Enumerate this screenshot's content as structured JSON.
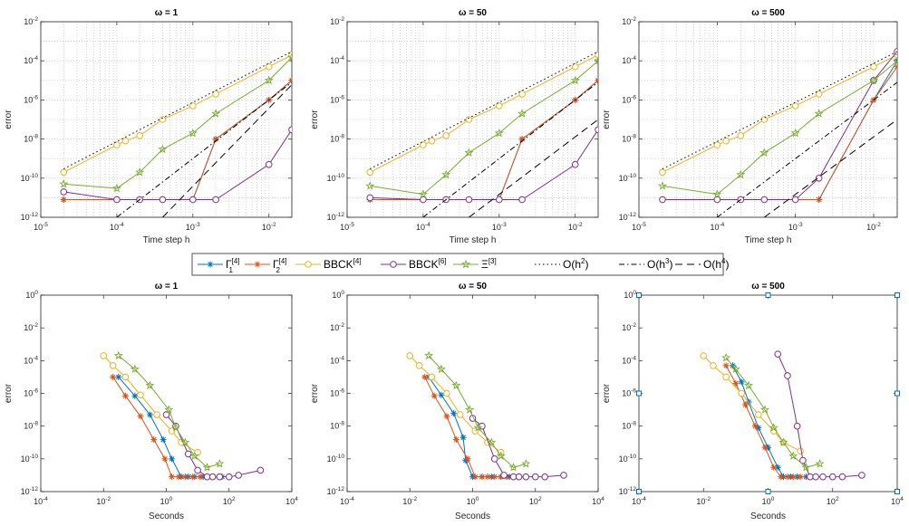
{
  "legend": [
    {
      "series": "Gamma1",
      "label": "Γ",
      "sup": "[4]",
      "sub": "1",
      "color": "#0072bd",
      "marker": "asterisk"
    },
    {
      "series": "Gamma2",
      "label": "Γ",
      "sup": "[4]",
      "sub": "2",
      "color": "#d95319",
      "marker": "asterisk"
    },
    {
      "series": "BBCK4",
      "label": "BBCK",
      "sup": "[4]",
      "sub": "",
      "color": "#edb120",
      "marker": "circle"
    },
    {
      "series": "BBCK6",
      "label": "BBCK",
      "sup": "[6]",
      "sub": "",
      "color": "#7e2f8e",
      "marker": "circle"
    },
    {
      "series": "Xi3",
      "label": "Ξ",
      "sup": "[3]",
      "sub": "",
      "color": "#77ac30",
      "marker": "star"
    },
    {
      "series": "Oh2",
      "label": "O(h",
      "sup": "2",
      "tail": ")",
      "dash": "1.5,3"
    },
    {
      "series": "Oh3",
      "label": "O(h",
      "sup": "3",
      "tail": ")",
      "dash": "6,3,1.5,3"
    },
    {
      "series": "Oh4",
      "label": "O(h",
      "sup": "4",
      "tail": ")",
      "dash": "8,5"
    }
  ],
  "chart_data": [
    {
      "type": "line",
      "title": "ω = 1",
      "xlabel": "Time step h",
      "ylabel": "error",
      "xscale": "log",
      "yscale": "log",
      "xlim": [
        1e-05,
        0.02
      ],
      "ylim": [
        1e-12,
        0.01
      ],
      "grid": "dotted",
      "series": [
        {
          "key": "Gamma1",
          "x": [
            2e-05,
            0.0001,
            0.0002,
            0.0004,
            0.001,
            0.002,
            0.01,
            0.02
          ],
          "y": [
            8e-12,
            8e-12,
            8e-12,
            8e-12,
            8e-12,
            1e-08,
            1e-06,
            1e-05
          ]
        },
        {
          "key": "Gamma2",
          "x": [
            2e-05,
            0.0001,
            0.0002,
            0.0004,
            0.001,
            0.002,
            0.01,
            0.02
          ],
          "y": [
            8e-12,
            8e-12,
            8e-12,
            8e-12,
            8e-12,
            1e-08,
            1e-06,
            1e-05
          ]
        },
        {
          "key": "BBCK4",
          "x": [
            2e-05,
            0.0001,
            0.00013,
            0.0002,
            0.0004,
            0.001,
            0.002,
            0.01,
            0.02
          ],
          "y": [
            2e-10,
            5e-09,
            8e-09,
            1.5e-08,
            1e-07,
            5e-07,
            2e-06,
            5e-05,
            0.0002
          ]
        },
        {
          "key": "BBCK6",
          "x": [
            2e-05,
            0.0001,
            0.0002,
            0.0004,
            0.001,
            0.002,
            0.01,
            0.02
          ],
          "y": [
            2e-11,
            8e-12,
            8e-12,
            8e-12,
            8e-12,
            8e-12,
            5e-10,
            3e-08
          ]
        },
        {
          "key": "Xi3",
          "x": [
            2e-05,
            0.0001,
            0.0002,
            0.0004,
            0.001,
            0.002,
            0.01,
            0.02
          ],
          "y": [
            5e-11,
            3e-11,
            2e-10,
            3e-09,
            2e-08,
            2e-07,
            1e-05,
            0.00015
          ]
        },
        {
          "key": "Oh2",
          "x": [
            2e-05,
            0.02
          ],
          "y": [
            3e-10,
            0.0003
          ]
        },
        {
          "key": "Oh3",
          "x": [
            0.0001,
            0.02
          ],
          "y": [
            1e-12,
            8e-06
          ]
        },
        {
          "key": "Oh4",
          "x": [
            0.0004,
            0.02
          ],
          "y": [
            1e-12,
            6e-06
          ]
        }
      ]
    },
    {
      "type": "line",
      "title": "ω = 50",
      "xlabel": "Time step h",
      "ylabel": "error",
      "xscale": "log",
      "yscale": "log",
      "xlim": [
        1e-05,
        0.02
      ],
      "ylim": [
        1e-12,
        0.01
      ],
      "grid": "dotted",
      "series": [
        {
          "key": "Gamma1",
          "x": [
            2e-05,
            0.0001,
            0.0002,
            0.0004,
            0.001,
            0.002,
            0.01,
            0.02
          ],
          "y": [
            8e-12,
            8e-12,
            8e-12,
            8e-12,
            8e-12,
            1e-08,
            1e-06,
            1e-05
          ]
        },
        {
          "key": "Gamma2",
          "x": [
            2e-05,
            0.0001,
            0.0002,
            0.0004,
            0.001,
            0.002,
            0.01,
            0.02
          ],
          "y": [
            8e-12,
            8e-12,
            8e-12,
            8e-12,
            8e-12,
            1e-08,
            1e-06,
            1e-05
          ]
        },
        {
          "key": "BBCK4",
          "x": [
            2e-05,
            0.0001,
            0.00013,
            0.0002,
            0.0004,
            0.001,
            0.002,
            0.01,
            0.02
          ],
          "y": [
            2e-10,
            5e-09,
            8e-09,
            1.5e-08,
            1e-07,
            5e-07,
            2e-06,
            5e-05,
            0.0002
          ]
        },
        {
          "key": "BBCK6",
          "x": [
            2e-05,
            0.0001,
            0.0002,
            0.0004,
            0.001,
            0.002,
            0.01,
            0.02
          ],
          "y": [
            1e-11,
            8e-12,
            8e-12,
            8e-12,
            8e-12,
            8e-12,
            5e-10,
            3e-08
          ]
        },
        {
          "key": "Xi3",
          "x": [
            2e-05,
            0.0001,
            0.0002,
            0.0004,
            0.001,
            0.002,
            0.01,
            0.02
          ],
          "y": [
            4e-11,
            1.5e-11,
            1.5e-10,
            2e-09,
            2e-08,
            2e-07,
            1e-05,
            0.0001
          ]
        },
        {
          "key": "Oh2",
          "x": [
            2e-05,
            0.02
          ],
          "y": [
            3e-10,
            0.0003
          ]
        },
        {
          "key": "Oh3",
          "x": [
            0.0001,
            0.02
          ],
          "y": [
            1e-12,
            8e-06
          ]
        },
        {
          "key": "Oh4",
          "x": [
            0.0004,
            0.02
          ],
          "y": [
            1e-12,
            1e-07
          ]
        }
      ]
    },
    {
      "type": "line",
      "title": "ω = 500",
      "xlabel": "Time step h",
      "ylabel": "error",
      "xscale": "log",
      "yscale": "log",
      "xlim": [
        1e-05,
        0.02
      ],
      "ylim": [
        1e-12,
        0.01
      ],
      "grid": "dotted",
      "series": [
        {
          "key": "Gamma1",
          "x": [
            2e-05,
            0.0001,
            0.0002,
            0.0004,
            0.001,
            0.002,
            0.01,
            0.02
          ],
          "y": [
            8e-12,
            8e-12,
            8e-12,
            8e-12,
            8e-12,
            8e-12,
            1e-06,
            0.0001
          ]
        },
        {
          "key": "Gamma2",
          "x": [
            2e-05,
            0.0001,
            0.0002,
            0.0004,
            0.001,
            0.002,
            0.01,
            0.02
          ],
          "y": [
            8e-12,
            8e-12,
            8e-12,
            8e-12,
            8e-12,
            8e-12,
            1e-06,
            5e-05
          ]
        },
        {
          "key": "BBCK4",
          "x": [
            2e-05,
            0.0001,
            0.00013,
            0.0002,
            0.0004,
            0.001,
            0.002,
            0.01,
            0.02
          ],
          "y": [
            2e-10,
            5e-09,
            8e-09,
            1.5e-08,
            1e-07,
            5e-07,
            2e-06,
            5e-05,
            0.0002
          ]
        },
        {
          "key": "BBCK6",
          "x": [
            2e-05,
            0.0001,
            0.0002,
            0.0004,
            0.001,
            0.002,
            0.01,
            0.02
          ],
          "y": [
            8e-12,
            8e-12,
            8e-12,
            8e-12,
            8e-12,
            1e-10,
            1e-05,
            0.0003
          ]
        },
        {
          "key": "Xi3",
          "x": [
            2e-05,
            0.0001,
            0.0002,
            0.0004,
            0.001,
            0.002,
            0.01,
            0.02
          ],
          "y": [
            4e-11,
            1.5e-11,
            1.5e-10,
            2e-09,
            2e-08,
            2e-07,
            1e-05,
            0.0001
          ]
        },
        {
          "key": "Oh2",
          "x": [
            2e-05,
            0.02
          ],
          "y": [
            3e-10,
            0.0003
          ]
        },
        {
          "key": "Oh3",
          "x": [
            0.0001,
            0.02
          ],
          "y": [
            1e-12,
            8e-06
          ]
        },
        {
          "key": "Oh4",
          "x": [
            0.0004,
            0.02
          ],
          "y": [
            1e-12,
            1e-07
          ]
        }
      ]
    },
    {
      "type": "line",
      "title": "ω = 1",
      "xlabel": "Seconds",
      "ylabel": "error",
      "xscale": "log",
      "yscale": "log",
      "xlim": [
        0.0001,
        10000.0
      ],
      "ylim": [
        1e-12,
        1
      ],
      "grid": "none",
      "series": [
        {
          "key": "Gamma1",
          "x": [
            0.03,
            0.1,
            0.3,
            0.8,
            1.5,
            3,
            5,
            8,
            15,
            30,
            60
          ],
          "y": [
            1e-05,
            7e-07,
            5e-08,
            1.5e-09,
            1e-10,
            8e-12,
            8e-12,
            8e-12,
            8e-12,
            8e-12,
            8e-12
          ]
        },
        {
          "key": "Gamma2",
          "x": [
            0.02,
            0.05,
            0.15,
            0.4,
            0.9,
            1.5,
            2.5,
            4,
            7,
            12,
            20
          ],
          "y": [
            1e-05,
            7e-07,
            4e-08,
            1.5e-09,
            1e-10,
            8e-12,
            8e-12,
            8e-12,
            8e-12,
            8e-12,
            8e-12
          ]
        },
        {
          "key": "BBCK4",
          "x": [
            0.01,
            0.02,
            0.05,
            0.15,
            0.5,
            1.5,
            3,
            10
          ],
          "y": [
            0.0002,
            5e-05,
            1e-05,
            8e-07,
            5e-08,
            5e-09,
            1e-09,
            2.5e-10
          ]
        },
        {
          "key": "BBCK6",
          "x": [
            1,
            2,
            5,
            10,
            20,
            30,
            50,
            100,
            200,
            1000
          ],
          "y": [
            5e-08,
            1e-08,
            2e-10,
            2e-11,
            8e-12,
            8e-12,
            8e-12,
            8e-12,
            1e-11,
            2e-11
          ]
        },
        {
          "key": "Xi3",
          "x": [
            0.03,
            0.1,
            0.3,
            1.2,
            2,
            4,
            8,
            20,
            50
          ],
          "y": [
            0.0002,
            3e-05,
            3e-06,
            1e-07,
            8e-09,
            1e-09,
            1.5e-10,
            3e-11,
            5e-11
          ]
        }
      ]
    },
    {
      "type": "line",
      "title": "ω = 50",
      "xlabel": "Seconds",
      "ylabel": "error",
      "xscale": "log",
      "yscale": "log",
      "xlim": [
        0.0001,
        10000.0
      ],
      "ylim": [
        1e-12,
        1
      ],
      "grid": "none",
      "series": [
        {
          "key": "Gamma1",
          "x": [
            0.04,
            0.1,
            0.25,
            0.5,
            0.6,
            1,
            2,
            4,
            8,
            15,
            30
          ],
          "y": [
            1e-05,
            8e-07,
            6e-08,
            2e-09,
            8e-11,
            8e-12,
            8e-12,
            8e-12,
            8e-12,
            8e-12,
            8e-12
          ]
        },
        {
          "key": "Gamma2",
          "x": [
            0.03,
            0.06,
            0.15,
            0.3,
            0.7,
            1.2,
            2,
            3,
            5,
            8,
            12
          ],
          "y": [
            1e-05,
            7e-07,
            4e-08,
            1.5e-09,
            1e-10,
            8e-12,
            8e-12,
            8e-12,
            8e-12,
            8e-12,
            8e-12
          ]
        },
        {
          "key": "BBCK4",
          "x": [
            0.01,
            0.02,
            0.05,
            0.15,
            0.4,
            1.2,
            3,
            8
          ],
          "y": [
            0.0002,
            5e-05,
            1e-05,
            1e-06,
            5e-08,
            5e-09,
            1e-09,
            2.5e-10
          ]
        },
        {
          "key": "BBCK6",
          "x": [
            1,
            2,
            5,
            10,
            20,
            30,
            50,
            100,
            200,
            800
          ],
          "y": [
            3e-08,
            1e-08,
            1e-10,
            1e-11,
            8e-12,
            8e-12,
            8e-12,
            8e-12,
            8e-12,
            1e-11
          ]
        },
        {
          "key": "Xi3",
          "x": [
            0.04,
            0.1,
            0.3,
            0.8,
            1.5,
            4,
            8,
            20,
            50
          ],
          "y": [
            0.0002,
            3e-05,
            3e-06,
            1e-07,
            8e-09,
            1e-09,
            1.5e-10,
            3e-11,
            5e-11
          ]
        }
      ]
    },
    {
      "type": "line",
      "title": "ω = 500",
      "xlabel": "Seconds",
      "ylabel": "error",
      "xscale": "log",
      "yscale": "log",
      "xlim": [
        0.0001,
        10000.0
      ],
      "ylim": [
        1e-12,
        1
      ],
      "grid": "none",
      "series": [
        {
          "key": "Gamma1",
          "x": [
            0.08,
            0.15,
            0.25,
            0.5,
            1,
            2,
            3,
            5,
            8,
            15,
            30
          ],
          "y": [
            5e-05,
            5e-06,
            3e-07,
            8e-09,
            5e-10,
            3e-11,
            8e-12,
            8e-12,
            8e-12,
            8e-12,
            8e-12
          ]
        },
        {
          "key": "Gamma2",
          "x": [
            0.05,
            0.1,
            0.2,
            0.4,
            0.8,
            1.5,
            2.5,
            4,
            6,
            10,
            20
          ],
          "y": [
            5e-05,
            4e-06,
            2e-07,
            1e-08,
            5e-10,
            3e-11,
            8e-12,
            8e-12,
            8e-12,
            8e-12,
            8e-12
          ]
        },
        {
          "key": "BBCK4",
          "x": [
            0.01,
            0.02,
            0.05,
            0.15,
            0.5,
            1.5,
            3,
            10
          ],
          "y": [
            0.0002,
            5e-05,
            1e-05,
            1e-06,
            5e-08,
            5e-09,
            1e-09,
            3e-10
          ]
        },
        {
          "key": "BBCK6",
          "x": [
            2,
            4,
            8,
            12,
            20,
            30,
            50,
            100,
            200,
            800
          ],
          "y": [
            0.00025,
            1.2e-05,
            1e-08,
            8e-11,
            8e-12,
            8e-12,
            8e-12,
            8e-12,
            8e-12,
            1e-11
          ]
        },
        {
          "key": "Xi3",
          "x": [
            0.05,
            0.1,
            0.25,
            0.8,
            1.5,
            3,
            6,
            15,
            40
          ],
          "y": [
            0.00015,
            3e-05,
            3e-06,
            1e-07,
            8e-09,
            1e-09,
            1.5e-10,
            3e-11,
            5e-11
          ]
        }
      ]
    }
  ]
}
